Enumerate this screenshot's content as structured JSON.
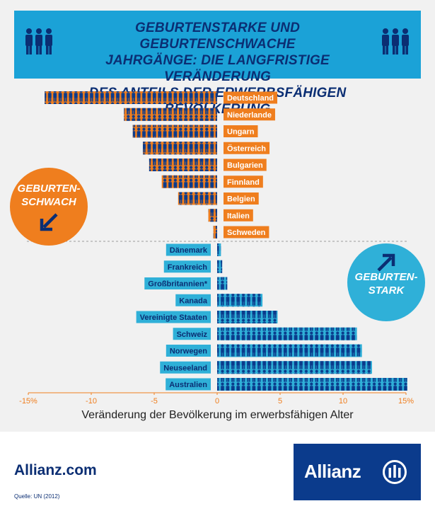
{
  "header": {
    "title_lines": [
      "GEBURTENSTARKE UND GEBURTENSCHWACHE",
      "JAHRGÄNGE: DIE LANGFRISTIGE VERÄNDERUNG",
      "DES ANTEILS DER ERWERBSFÄHIGEN BEVÖLKERUNG"
    ],
    "icon": "people-group-icon"
  },
  "badges": {
    "weak": {
      "lines": [
        "GEBURTEN-",
        "SCHWACH"
      ],
      "color": "#ef7e1e",
      "icon": "arrow-down-left-icon"
    },
    "strong": {
      "lines": [
        "GEBURTEN-",
        "STARK"
      ],
      "color": "#2fb0d8",
      "icon": "arrow-up-right-icon"
    }
  },
  "chart_data": {
    "type": "bar",
    "orientation": "horizontal",
    "xlabel": "Veränderung der Bevölkerung im erwerbsfähigen Alter",
    "xlim": [
      -15,
      15
    ],
    "xticks": [
      "-15%",
      "-10",
      "-5",
      "0",
      "5",
      "10",
      "15%"
    ],
    "xtick_values": [
      -15,
      -10,
      -5,
      0,
      5,
      10,
      15
    ],
    "categories": [
      "Deutschland",
      "Niederlande",
      "Ungarn",
      "Österreich",
      "Bulgarien",
      "Finnland",
      "Belgien",
      "Italien",
      "Schweden",
      "Dänemark",
      "Frankreich",
      "Großbritannien*",
      "Kanada",
      "Vereinigte Staaten",
      "Schweiz",
      "Norwegen",
      "Neuseeland",
      "Australien"
    ],
    "values": [
      -13.7,
      -7.4,
      -6.7,
      -5.9,
      -5.4,
      -4.4,
      -3.1,
      -0.7,
      -0.3,
      0.3,
      0.4,
      0.8,
      3.6,
      4.8,
      11.1,
      11.5,
      12.3,
      15.1
    ],
    "colors": {
      "negative": "#ef7e1e",
      "positive": "#2fb0d8",
      "figures": "#0b3b8c"
    }
  },
  "footer": {
    "site": "Allianz.com",
    "source": "Quelle: UN (2012)",
    "brand": "Allianz",
    "brand_color": "#0b3b8c"
  }
}
